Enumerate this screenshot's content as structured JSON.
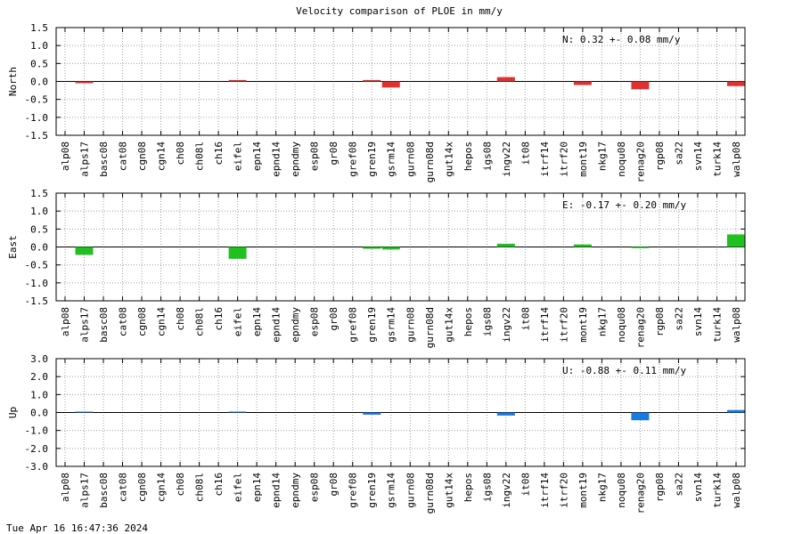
{
  "title": "Velocity comparison of PLOE in mm/y",
  "footer": "Tue Apr 16 16:47:36 2024",
  "chart_data": [
    {
      "type": "bar",
      "ylabel": "North",
      "color": "#e03030",
      "annotation": "N:   0.32 +-  0.08 mm/y",
      "ylim": [
        -1.5,
        1.5
      ],
      "yticks": [
        "1.5",
        "1.0",
        "0.5",
        "0.0",
        "-0.5",
        "-1.0",
        "-1.5"
      ],
      "grid": true,
      "categories": [
        "alp08",
        "alps17",
        "basc08",
        "cat08",
        "cgn08",
        "cgn14",
        "ch08",
        "ch08l",
        "ch16",
        "eifel",
        "epn14",
        "epnd14",
        "epndmy",
        "esp08",
        "gr08",
        "gref08",
        "gren19",
        "gsrm14",
        "gurn08",
        "gurn08d",
        "gut14x",
        "hepos",
        "igs08",
        "ingv22",
        "it08",
        "itrf14",
        "itrf20",
        "mont19",
        "nkg17",
        "noqu08",
        "renag20",
        "rgp08",
        "sa22",
        "svn14",
        "turk14",
        "walp08"
      ],
      "values": [
        0,
        -0.05,
        0,
        0,
        0,
        0,
        0,
        0,
        0,
        0.04,
        0,
        0,
        0,
        0,
        0,
        0,
        0.04,
        -0.17,
        0,
        0,
        0,
        0,
        0,
        0.12,
        0,
        0,
        0,
        -0.1,
        0,
        0,
        -0.22,
        0,
        0,
        0,
        0,
        -0.13
      ]
    },
    {
      "type": "bar",
      "ylabel": "East",
      "color": "#20c020",
      "annotation": "E:  -0.17 +-  0.20 mm/y",
      "ylim": [
        -1.5,
        1.5
      ],
      "yticks": [
        "1.5",
        "1.0",
        "0.5",
        "0.0",
        "-0.5",
        "-1.0",
        "-1.5"
      ],
      "grid": true,
      "categories": [
        "alp08",
        "alps17",
        "basc08",
        "cat08",
        "cgn08",
        "cgn14",
        "ch08",
        "ch08l",
        "ch16",
        "eifel",
        "epn14",
        "epnd14",
        "epndmy",
        "esp08",
        "gr08",
        "gref08",
        "gren19",
        "gsrm14",
        "gurn08",
        "gurn08d",
        "gut14x",
        "hepos",
        "igs08",
        "ingv22",
        "it08",
        "itrf14",
        "itrf20",
        "mont19",
        "nkg17",
        "noqu08",
        "renag20",
        "rgp08",
        "sa22",
        "svn14",
        "turk14",
        "walp08"
      ],
      "values": [
        0,
        -0.22,
        0,
        0,
        0,
        0,
        0,
        0,
        0,
        -0.33,
        0,
        0,
        0,
        0,
        0,
        0,
        -0.05,
        -0.07,
        0,
        0,
        0,
        0,
        0,
        0.09,
        0,
        0,
        0,
        0.07,
        0,
        0,
        -0.03,
        0,
        0,
        0,
        0,
        0.35
      ]
    },
    {
      "type": "bar",
      "ylabel": "Up",
      "color": "#1a7ae0",
      "annotation": "U:  -0.88 +-  0.11 mm/y",
      "ylim": [
        -3.0,
        3.0
      ],
      "yticks": [
        "3.0",
        "2.0",
        "1.0",
        "0.0",
        "-1.0",
        "-2.0",
        "-3.0"
      ],
      "grid": true,
      "categories": [
        "alp08",
        "alps17",
        "basc08",
        "cat08",
        "cgn08",
        "cgn14",
        "ch08",
        "ch08l",
        "ch16",
        "eifel",
        "epn14",
        "epnd14",
        "epndmy",
        "esp08",
        "gr08",
        "gref08",
        "gren19",
        "gsrm14",
        "gurn08",
        "gurn08d",
        "gut14x",
        "hepos",
        "igs08",
        "ingv22",
        "it08",
        "itrf14",
        "itrf20",
        "mont19",
        "nkg17",
        "noqu08",
        "renag20",
        "rgp08",
        "sa22",
        "svn14",
        "turk14",
        "walp08"
      ],
      "values": [
        0,
        0.05,
        0,
        0,
        0,
        0,
        0,
        0,
        0,
        0.05,
        0,
        0,
        0,
        0,
        0,
        0,
        -0.12,
        0,
        0,
        0,
        0,
        0,
        0,
        -0.17,
        0,
        0,
        0,
        0,
        0,
        0,
        -0.43,
        0,
        0,
        0,
        0,
        0.14
      ]
    }
  ]
}
